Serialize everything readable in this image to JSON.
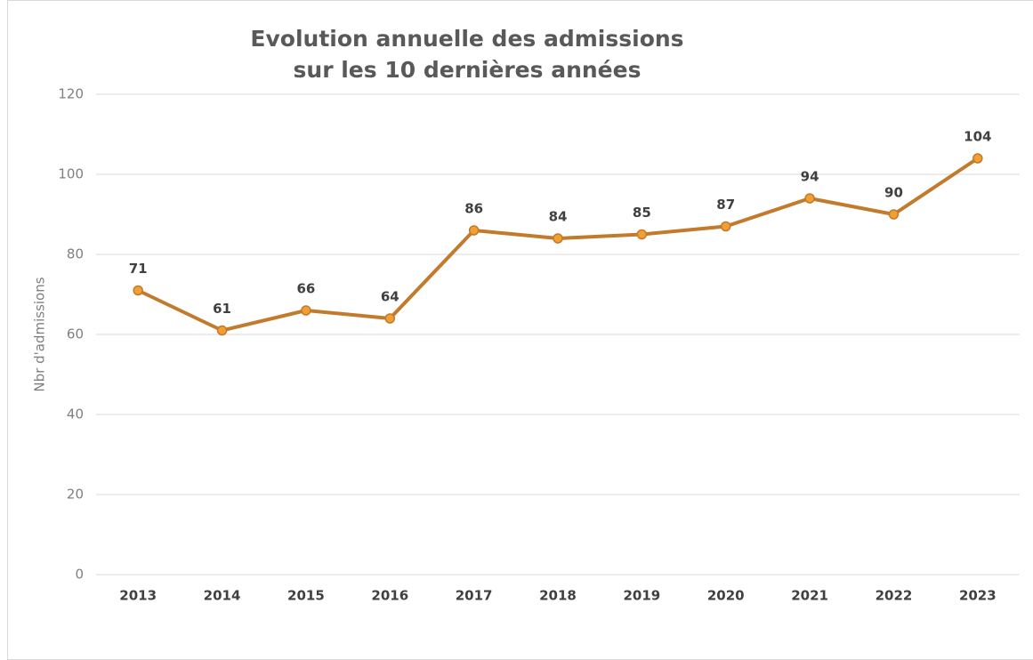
{
  "chart_data": {
    "type": "line",
    "title": [
      "Evolution annuelle des admissions",
      "sur les 10 dernières années"
    ],
    "y_label": "Nbr d'admissions",
    "categories": [
      "2013",
      "2014",
      "2015",
      "2016",
      "2017",
      "2018",
      "2019",
      "2020",
      "2021",
      "2022",
      "2023"
    ],
    "values": [
      71,
      61,
      66,
      64,
      86,
      84,
      85,
      87,
      94,
      90,
      104
    ],
    "color": "#c27a2c",
    "marker_color": "#f0a032",
    "ylim": [
      0,
      120
    ],
    "yticks": [
      0,
      20,
      40,
      60,
      80,
      100,
      120
    ],
    "grid": true
  }
}
